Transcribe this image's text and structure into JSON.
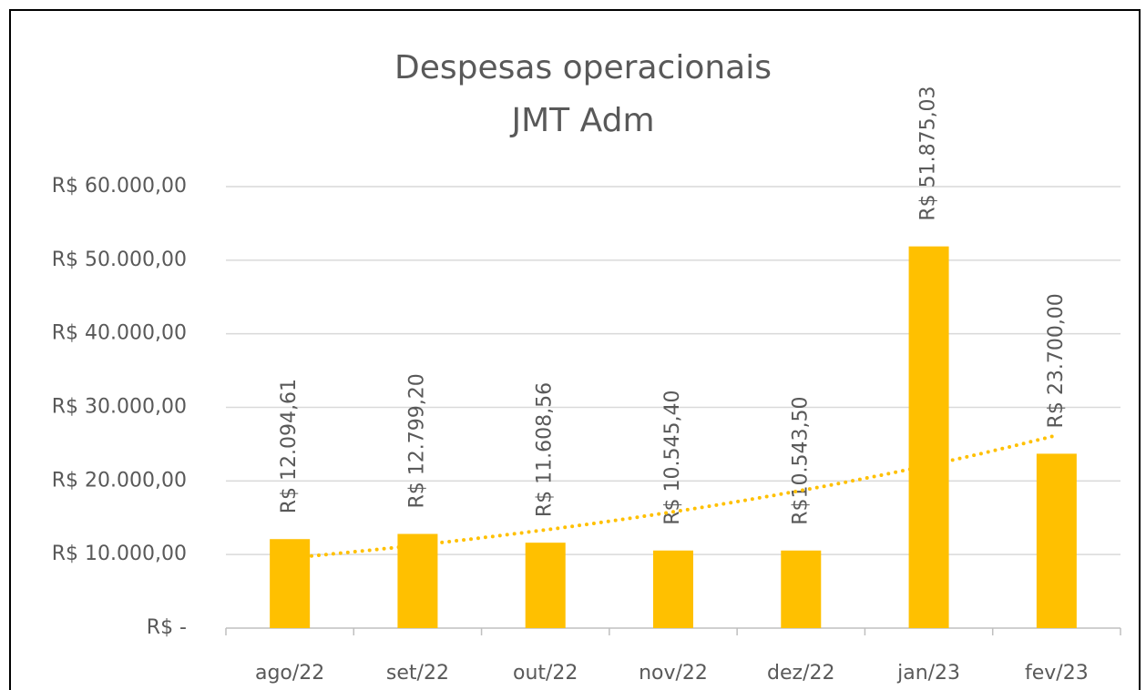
{
  "chart_data": {
    "type": "bar",
    "title": "Despesas operacionais",
    "subtitle": "JMT Adm",
    "categories": [
      "ago/22",
      "set/22",
      "out/22",
      "nov/22",
      "dez/22",
      "jan/23",
      "fev/23"
    ],
    "values": [
      12094.61,
      12799.2,
      11608.56,
      10545.4,
      10543.5,
      51875.03,
      23700.0
    ],
    "value_labels": [
      "R$ 12.094,61",
      "R$ 12.799,20",
      "R$ 11.608,56",
      "R$ 10.545,40",
      "R$10.543,50",
      "R$ 51.875,03",
      "R$ 23.700,00"
    ],
    "color": "#ffc000",
    "ylim": [
      0,
      60000
    ],
    "yticks": [
      {
        "value": 0,
        "label": "R$ -"
      },
      {
        "value": 10000,
        "label": "R$ 10.000,00"
      },
      {
        "value": 20000,
        "label": "R$ 20.000,00"
      },
      {
        "value": 30000,
        "label": "R$ 30.000,00"
      },
      {
        "value": 40000,
        "label": "R$ 40.000,00"
      },
      {
        "value": 50000,
        "label": "R$ 50.000,00"
      },
      {
        "value": 60000,
        "label": "R$ 60.000,00"
      }
    ],
    "grid": true,
    "trendline": {
      "type": "exponential",
      "color": "#ffc000"
    }
  }
}
